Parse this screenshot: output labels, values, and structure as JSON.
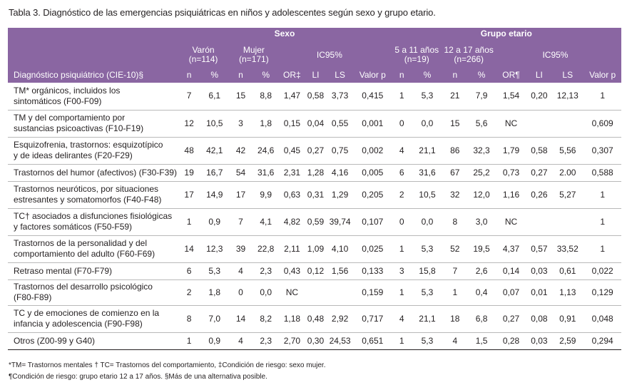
{
  "caption": "Tabla 3. Diagnóstico de las emergencias psiquiátricas en niños y adolescentes según sexo y grupo etario.",
  "header": {
    "group_sexo": "Sexo",
    "group_etario": "Grupo etario",
    "varon": "Varón",
    "varon_n": "(n=114)",
    "mujer": "Mujer",
    "mujer_n": "(n=171)",
    "ic95_a": "IC95%",
    "edad1": "5 a 11 años",
    "edad1_n": "(n=19)",
    "edad2": "12 a 17 años",
    "edad2_n": "(n=266)",
    "ic95_b": "IC95%",
    "diag": "Diagnóstico psiquiátrico (CIE-10)§",
    "cols": [
      "n",
      "%",
      "n",
      "%",
      "OR‡",
      "LI",
      "LS",
      "Valor p",
      "n",
      "%",
      "n",
      "%",
      "OR¶",
      "LI",
      "LS",
      "Valor p"
    ]
  },
  "rows": [
    {
      "label1": "TM* orgánicos, incluidos los",
      "label2": "sintomáticos (F00-F09)",
      "v": [
        "7",
        "6,1",
        "15",
        "8,8",
        "1,47",
        "0,58",
        "3,73",
        "0,415",
        "1",
        "5,3",
        "21",
        "7,9",
        "1,54",
        "0,20",
        "12,13",
        "1"
      ]
    },
    {
      "label1": "TM y del comportamiento por",
      "label2": "sustancias psicoactivas (F10-F19)",
      "v": [
        "12",
        "10,5",
        "3",
        "1,8",
        "0,15",
        "0,04",
        "0,55",
        "0,001",
        "0",
        "0,0",
        "15",
        "5,6",
        "NC",
        "",
        "",
        "0,609"
      ]
    },
    {
      "label1": "Esquizofrenia, trastornos: esquizotípico",
      "label2": "y de ideas delirantes (F20-F29)",
      "v": [
        "48",
        "42,1",
        "42",
        "24,6",
        "0,45",
        "0,27",
        "0,75",
        "0,002",
        "4",
        "21,1",
        "86",
        "32,3",
        "1,79",
        "0,58",
        "5,56",
        "0,307"
      ]
    },
    {
      "label1": "Trastornos del humor (afectivos) (F30-F39)",
      "label2": "",
      "v": [
        "19",
        "16,7",
        "54",
        "31,6",
        "2,31",
        "1,28",
        "4,16",
        "0,005",
        "6",
        "31,6",
        "67",
        "25,2",
        "0,73",
        "0,27",
        "2.00",
        "0,588"
      ]
    },
    {
      "label1": "Trastornos neuróticos, por situaciones",
      "label2": "estresantes y somatomorfos (F40-F48)",
      "v": [
        "17",
        "14,9",
        "17",
        "9,9",
        "0,63",
        "0,31",
        "1,29",
        "0,205",
        "2",
        "10,5",
        "32",
        "12,0",
        "1,16",
        "0,26",
        "5,27",
        "1"
      ]
    },
    {
      "label1": "TC† asociados a disfunciones fisiológicas",
      "label2": "y factores somáticos (F50-F59)",
      "v": [
        "1",
        "0,9",
        "7",
        "4,1",
        "4,82",
        "0,59",
        "39,74",
        "0,107",
        "0",
        "0,0",
        "8",
        "3,0",
        "NC",
        "",
        "",
        "1"
      ]
    },
    {
      "label1": "Trastornos de la personalidad y del",
      "label2": "comportamiento del adulto (F60-F69)",
      "v": [
        "14",
        "12,3",
        "39",
        "22,8",
        "2,11",
        "1,09",
        "4,10",
        "0,025",
        "1",
        "5,3",
        "52",
        "19,5",
        "4,37",
        "0,57",
        "33,52",
        "1"
      ]
    },
    {
      "label1": "Retraso mental (F70-F79)",
      "label2": "",
      "v": [
        "6",
        "5,3",
        "4",
        "2,3",
        "0,43",
        "0,12",
        "1,56",
        "0,133",
        "3",
        "15,8",
        "7",
        "2,6",
        "0,14",
        "0,03",
        "0,61",
        "0,022"
      ]
    },
    {
      "label1": "Trastornos del desarrollo psicológico",
      "label2": "(F80-F89)",
      "v": [
        "2",
        "1,8",
        "0",
        "0,0",
        "NC",
        "",
        "",
        "0,159",
        "1",
        "5,3",
        "1",
        "0,4",
        "0,07",
        "0,01",
        "1,13",
        "0,129"
      ]
    },
    {
      "label1": "TC y de emociones de comienzo en la",
      "label2": "infancia y adolescencia (F90-F98)",
      "v": [
        "8",
        "7,0",
        "14",
        "8,2",
        "1,18",
        "0,48",
        "2,92",
        "0,717",
        "4",
        "21,1",
        "18",
        "6,8",
        "0,27",
        "0,08",
        "0,91",
        "0,048"
      ]
    },
    {
      "label1": "Otros (Z00-99 y G40)",
      "label2": "",
      "v": [
        "1",
        "0,9",
        "4",
        "2,3",
        "2,70",
        "0,30",
        "24,53",
        "0,651",
        "1",
        "5,3",
        "4",
        "1,5",
        "0,28",
        "0,03",
        "2,59",
        "0,294"
      ]
    }
  ],
  "footnotes": [
    "*TM= Trastornos mentales † TC= Trastornos del comportamiento, ‡Condición de riesgo: sexo mujer.",
    "¶Condición de riesgo: grupo etario 12 a 17 años. §Más de una alternativa posible."
  ]
}
